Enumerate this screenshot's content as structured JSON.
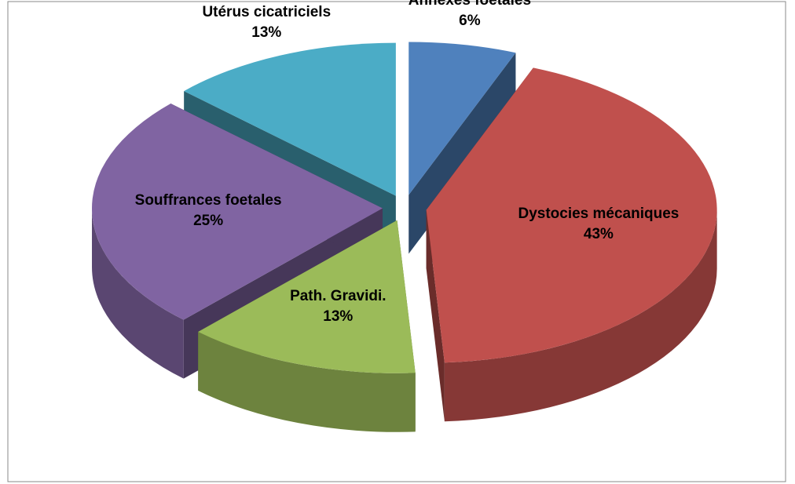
{
  "chart_data": {
    "type": "pie",
    "categories": [
      "Annexes foetales",
      "Dystocies mécaniques",
      "Path. Gravidi.",
      "Souffrances foetales",
      "Utérus cicatriciels"
    ],
    "values": [
      6,
      43,
      13,
      25,
      13
    ],
    "value_labels": [
      "6%",
      "43%",
      "13%",
      "25%",
      "13%"
    ],
    "colors": [
      "#4f81bd",
      "#c0504d",
      "#9bbb59",
      "#8064a2",
      "#4bacc6"
    ]
  }
}
